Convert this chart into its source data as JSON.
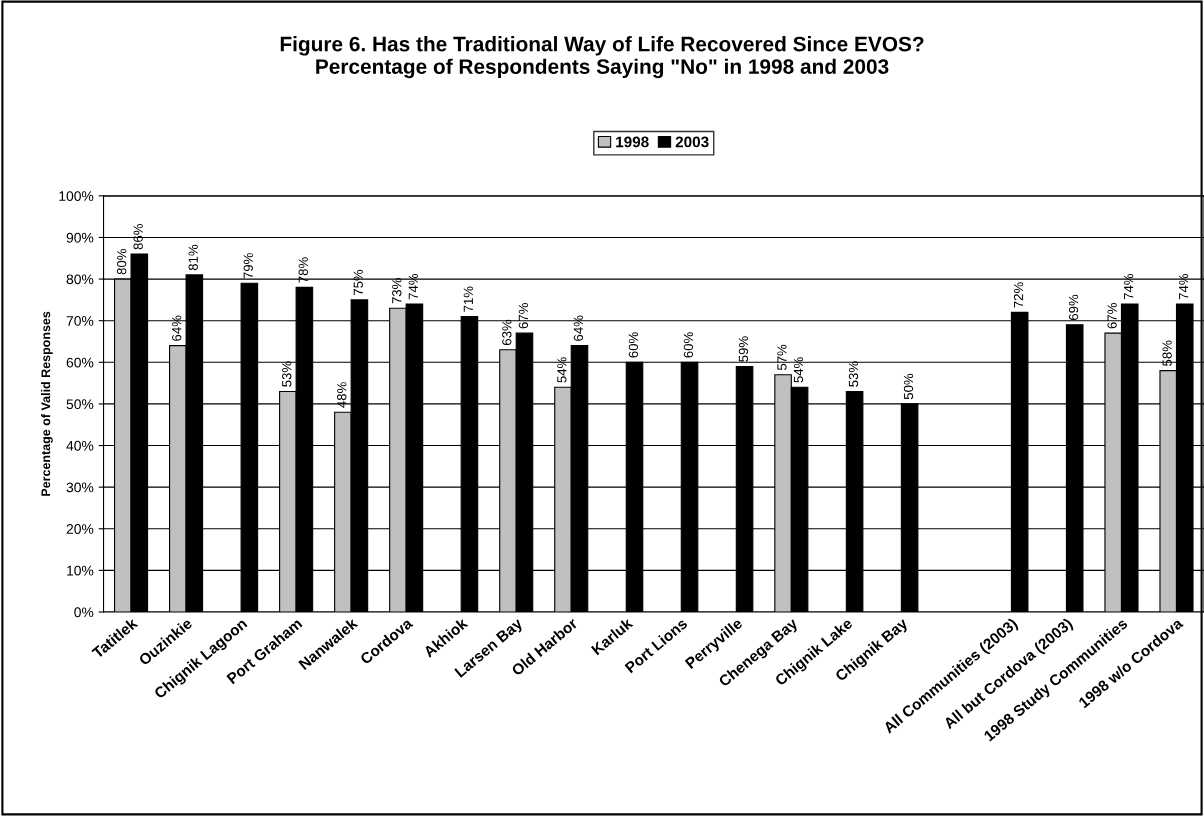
{
  "chart_data": {
    "type": "bar",
    "title": "Figure 6. Has the Traditional Way of Life Recovered Since EVOS?\nPercentage of Respondents Saying \"No\" in 1998 and 2003",
    "ylabel": "Percentage of Valid Responses",
    "categories": [
      "Tatitlek",
      "Ouzinkie",
      "Chignik Lagoon",
      "Port Graham",
      "Nanwalek",
      "Cordova",
      "Akhiok",
      "Larsen Bay",
      "Old Harbor",
      "Karluk",
      "Port Lions",
      "Perryville",
      "Chenega Bay",
      "Chignik Lake",
      "Chignik Bay",
      null,
      "All Communities (2003)",
      "All but Cordova (2003)",
      "1998 Study Communities",
      "1998 w/o Cordova"
    ],
    "series": [
      {
        "name": "1998",
        "color": "#c0c0c0",
        "values": [
          80,
          64,
          null,
          53,
          48,
          73,
          null,
          63,
          54,
          null,
          null,
          null,
          57,
          null,
          null,
          null,
          null,
          null,
          67,
          58
        ],
        "value_labels": [
          "80%",
          "64%",
          null,
          "53%",
          "48%",
          "73%",
          null,
          "63%",
          "54%",
          null,
          null,
          null,
          "57%",
          null,
          null,
          null,
          null,
          null,
          "67%",
          "58%"
        ]
      },
      {
        "name": "2003",
        "color": "#000000",
        "values": [
          86,
          81,
          79,
          78,
          75,
          74,
          71,
          67,
          64,
          60,
          60,
          59,
          54,
          53,
          50,
          null,
          72,
          69,
          74,
          74
        ],
        "value_labels": [
          "86%",
          "81%",
          "79%",
          "78%",
          "75%",
          "74%",
          "71%",
          "67%",
          "64%",
          "60%",
          "60%",
          "59%",
          "54%",
          "53%",
          "50%",
          null,
          "72%",
          "69%",
          "74%",
          "74%"
        ]
      }
    ],
    "ylim": [
      0,
      100
    ],
    "yticks": [
      {
        "value": 0,
        "label": "0%"
      },
      {
        "value": 10,
        "label": "10%"
      },
      {
        "value": 20,
        "label": "20%"
      },
      {
        "value": 30,
        "label": "30%"
      },
      {
        "value": 40,
        "label": "40%"
      },
      {
        "value": 50,
        "label": "50%"
      },
      {
        "value": 60,
        "label": "60%"
      },
      {
        "value": 70,
        "label": "70%"
      },
      {
        "value": 80,
        "label": "80%"
      },
      {
        "value": 90,
        "label": "90%"
      },
      {
        "value": 100,
        "label": "100%"
      }
    ],
    "grid": "y",
    "legend": "top"
  }
}
